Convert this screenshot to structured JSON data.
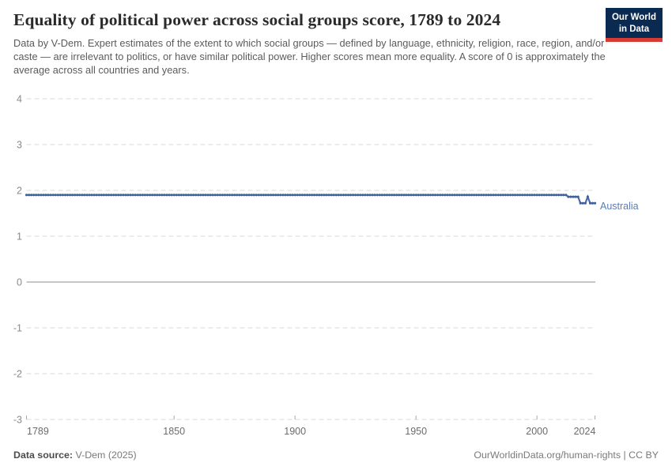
{
  "header": {
    "title": "Equality of political power across social groups score, 1789 to 2024",
    "subtitle": "Data by V-Dem. Expert estimates of the extent to which social groups — defined by language, ethnicity, religion, race, region, and/or caste — are irrelevant to politics, or have similar political power. Higher scores mean more equality. A score of 0 is approximately the average across all countries and years.",
    "logo": {
      "line1": "Our World",
      "line2": "in Data",
      "bg_color": "#0a2a52",
      "accent_color": "#d73c34"
    }
  },
  "footer": {
    "source_label": "Data source:",
    "source_value": " V-Dem (2025)",
    "credit": "OurWorldinData.org/human-rights | CC BY"
  },
  "chart_data": {
    "type": "line",
    "title": "Equality of political power across social groups score, 1789 to 2024",
    "entity": "Australia",
    "xlabel": "",
    "ylabel": "",
    "xlim": [
      1789,
      2024
    ],
    "ylim": [
      -3,
      4
    ],
    "x_label_years": [
      1789,
      1850,
      1900,
      1950,
      2000,
      2024
    ],
    "y_ticks": [
      4,
      3,
      2,
      1,
      0,
      -1,
      -2,
      -3
    ],
    "grid": "horizontal dashed, solid zero line",
    "legend_position": "label at end of line",
    "line_color": "#4d6ba8",
    "dot_color": "#3f5f9e",
    "label_color": "#5b7cb3",
    "zero_line_color": "#8c8c8c",
    "gridline_color": "#dadada",
    "value_segments": [
      {
        "from": 1789,
        "to": 2012,
        "value": 1.9
      },
      {
        "from": 2013,
        "to": 2017,
        "value": 1.86
      },
      {
        "from": 2018,
        "to": 2020,
        "value": 1.72
      },
      {
        "from": 2021,
        "to": 2021,
        "value": 1.86
      },
      {
        "from": 2022,
        "to": 2024,
        "value": 1.72
      }
    ]
  }
}
